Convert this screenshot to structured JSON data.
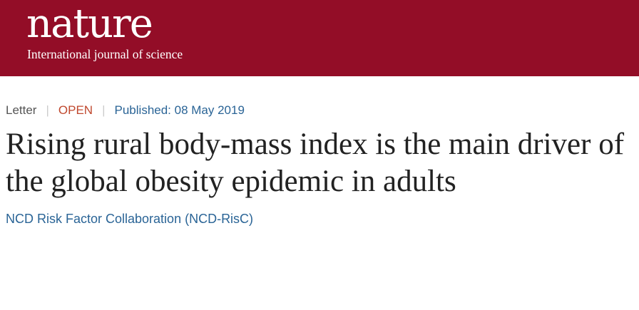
{
  "header": {
    "logo": "nature",
    "tagline": "International journal of science"
  },
  "meta": {
    "type": "Letter",
    "access": "OPEN",
    "published": "Published: 08 May 2019"
  },
  "article": {
    "title": "Rising rural body-mass index is the main driver of the global obesity epidemic in adults",
    "author": "NCD Risk Factor Collaboration (NCD-RisC)"
  },
  "colors": {
    "brand": "#930d27",
    "open": "#c0482e",
    "link": "#2a6496"
  }
}
